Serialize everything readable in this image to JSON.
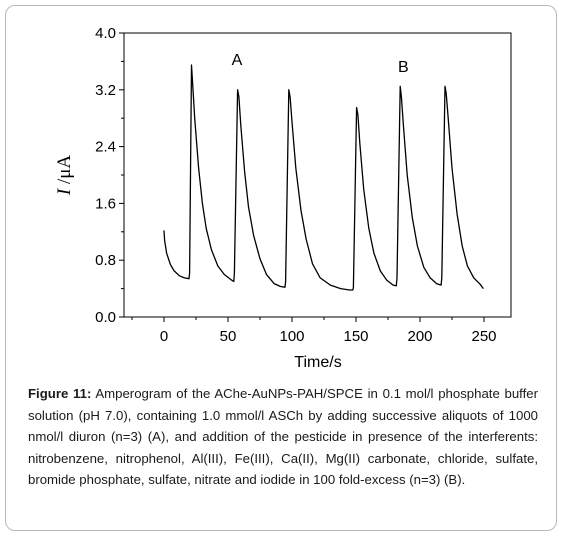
{
  "chart_data": {
    "type": "line",
    "xlabel": "Time/s",
    "ylabel_italic": "I",
    "ylabel_unit": " /μA",
    "xlim": [
      -25,
      260
    ],
    "ylim": [
      0,
      4.0
    ],
    "xticks": [
      0,
      50,
      100,
      150,
      200,
      250
    ],
    "yticks": [
      0.0,
      0.8,
      1.6,
      2.4,
      3.2,
      4.0
    ],
    "ytick_labels": [
      "0.0",
      "0.8",
      "1.6",
      "2.4",
      "3.2",
      "4.0"
    ],
    "annotations": [
      {
        "text": "A",
        "x": 57,
        "y": 3.55
      },
      {
        "text": "B",
        "x": 187,
        "y": 3.45
      }
    ],
    "series": [
      {
        "line_color": "#000000",
        "points": [
          [
            0,
            1.22
          ],
          [
            0.5,
            1.08
          ],
          [
            2,
            0.9
          ],
          [
            5,
            0.74
          ],
          [
            8,
            0.65
          ],
          [
            12,
            0.58
          ],
          [
            16,
            0.55
          ],
          [
            19.5,
            0.54
          ],
          [
            20,
            0.62
          ],
          [
            21.5,
            3.55
          ],
          [
            22.5,
            3.25
          ],
          [
            24,
            2.8
          ],
          [
            27,
            2.1
          ],
          [
            30,
            1.6
          ],
          [
            33,
            1.25
          ],
          [
            37,
            0.95
          ],
          [
            42,
            0.72
          ],
          [
            47,
            0.6
          ],
          [
            52,
            0.53
          ],
          [
            54.5,
            0.5
          ],
          [
            55,
            0.62
          ],
          [
            57.5,
            3.2
          ],
          [
            58.5,
            3.1
          ],
          [
            60,
            2.7
          ],
          [
            63,
            2.05
          ],
          [
            66,
            1.55
          ],
          [
            70,
            1.15
          ],
          [
            75,
            0.82
          ],
          [
            80,
            0.6
          ],
          [
            86,
            0.47
          ],
          [
            91,
            0.43
          ],
          [
            94.5,
            0.42
          ],
          [
            95,
            0.5
          ],
          [
            97.5,
            3.2
          ],
          [
            98.5,
            3.1
          ],
          [
            100,
            2.75
          ],
          [
            103,
            2.1
          ],
          [
            107,
            1.5
          ],
          [
            111,
            1.1
          ],
          [
            116,
            0.75
          ],
          [
            122,
            0.55
          ],
          [
            130,
            0.45
          ],
          [
            138,
            0.4
          ],
          [
            145,
            0.38
          ],
          [
            147.5,
            0.38
          ],
          [
            148,
            0.42
          ],
          [
            150.5,
            2.95
          ],
          [
            151.5,
            2.85
          ],
          [
            153,
            2.45
          ],
          [
            156,
            1.8
          ],
          [
            160,
            1.25
          ],
          [
            164,
            0.9
          ],
          [
            169,
            0.65
          ],
          [
            174,
            0.52
          ],
          [
            179,
            0.45
          ],
          [
            181.5,
            0.44
          ],
          [
            182,
            0.55
          ],
          [
            184.5,
            3.25
          ],
          [
            185.5,
            3.1
          ],
          [
            187,
            2.7
          ],
          [
            190,
            2.0
          ],
          [
            194,
            1.4
          ],
          [
            198,
            1.0
          ],
          [
            203,
            0.7
          ],
          [
            208,
            0.55
          ],
          [
            213,
            0.47
          ],
          [
            216.5,
            0.45
          ],
          [
            217,
            0.55
          ],
          [
            219.5,
            3.25
          ],
          [
            220.5,
            3.15
          ],
          [
            222,
            2.8
          ],
          [
            225,
            2.1
          ],
          [
            229,
            1.45
          ],
          [
            233,
            1.0
          ],
          [
            237,
            0.72
          ],
          [
            242,
            0.55
          ],
          [
            247,
            0.46
          ],
          [
            249.5,
            0.4
          ]
        ]
      }
    ]
  },
  "caption": {
    "label": "Figure 11:",
    "text": " Amperogram of the AChe-AuNPs-PAH/SPCE in 0.1 mol/l phosphate buffer solution (pH 7.0), containing 1.0 mmol/l ASCh by adding successive aliquots of 1000 nmol/l diuron (n=3) (A), and addition of the pesticide in presence of the interferents: nitrobenzene, nitrophenol, Al(III), Fe(III), Ca(II), Mg(II) carbonate, chloride, sulfate, bromide phosphate, sulfate, nitrate and iodide in 100 fold-excess (n=3) (B)."
  }
}
